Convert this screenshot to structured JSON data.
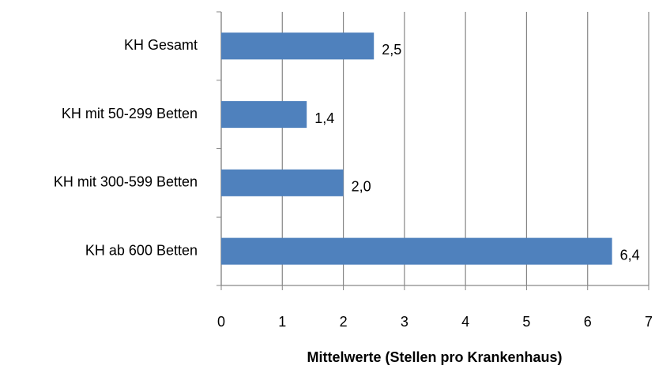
{
  "chart_data": {
    "type": "barh",
    "categories": [
      "KH Gesamt",
      "KH mit 50-299 Betten",
      "KH mit 300-599 Betten",
      "KH ab 600 Betten"
    ],
    "values": [
      2.5,
      1.4,
      2.0,
      6.4
    ],
    "value_labels": [
      "2,5",
      "1,4",
      "2,0",
      "6,4"
    ],
    "color": "#4f81bd",
    "xlabel": "Mittelwerte (Stellen pro Krankenhaus)",
    "xlim": [
      0,
      7
    ],
    "xticks": [
      0,
      1,
      2,
      3,
      4,
      5,
      6,
      7
    ],
    "grid": true
  }
}
